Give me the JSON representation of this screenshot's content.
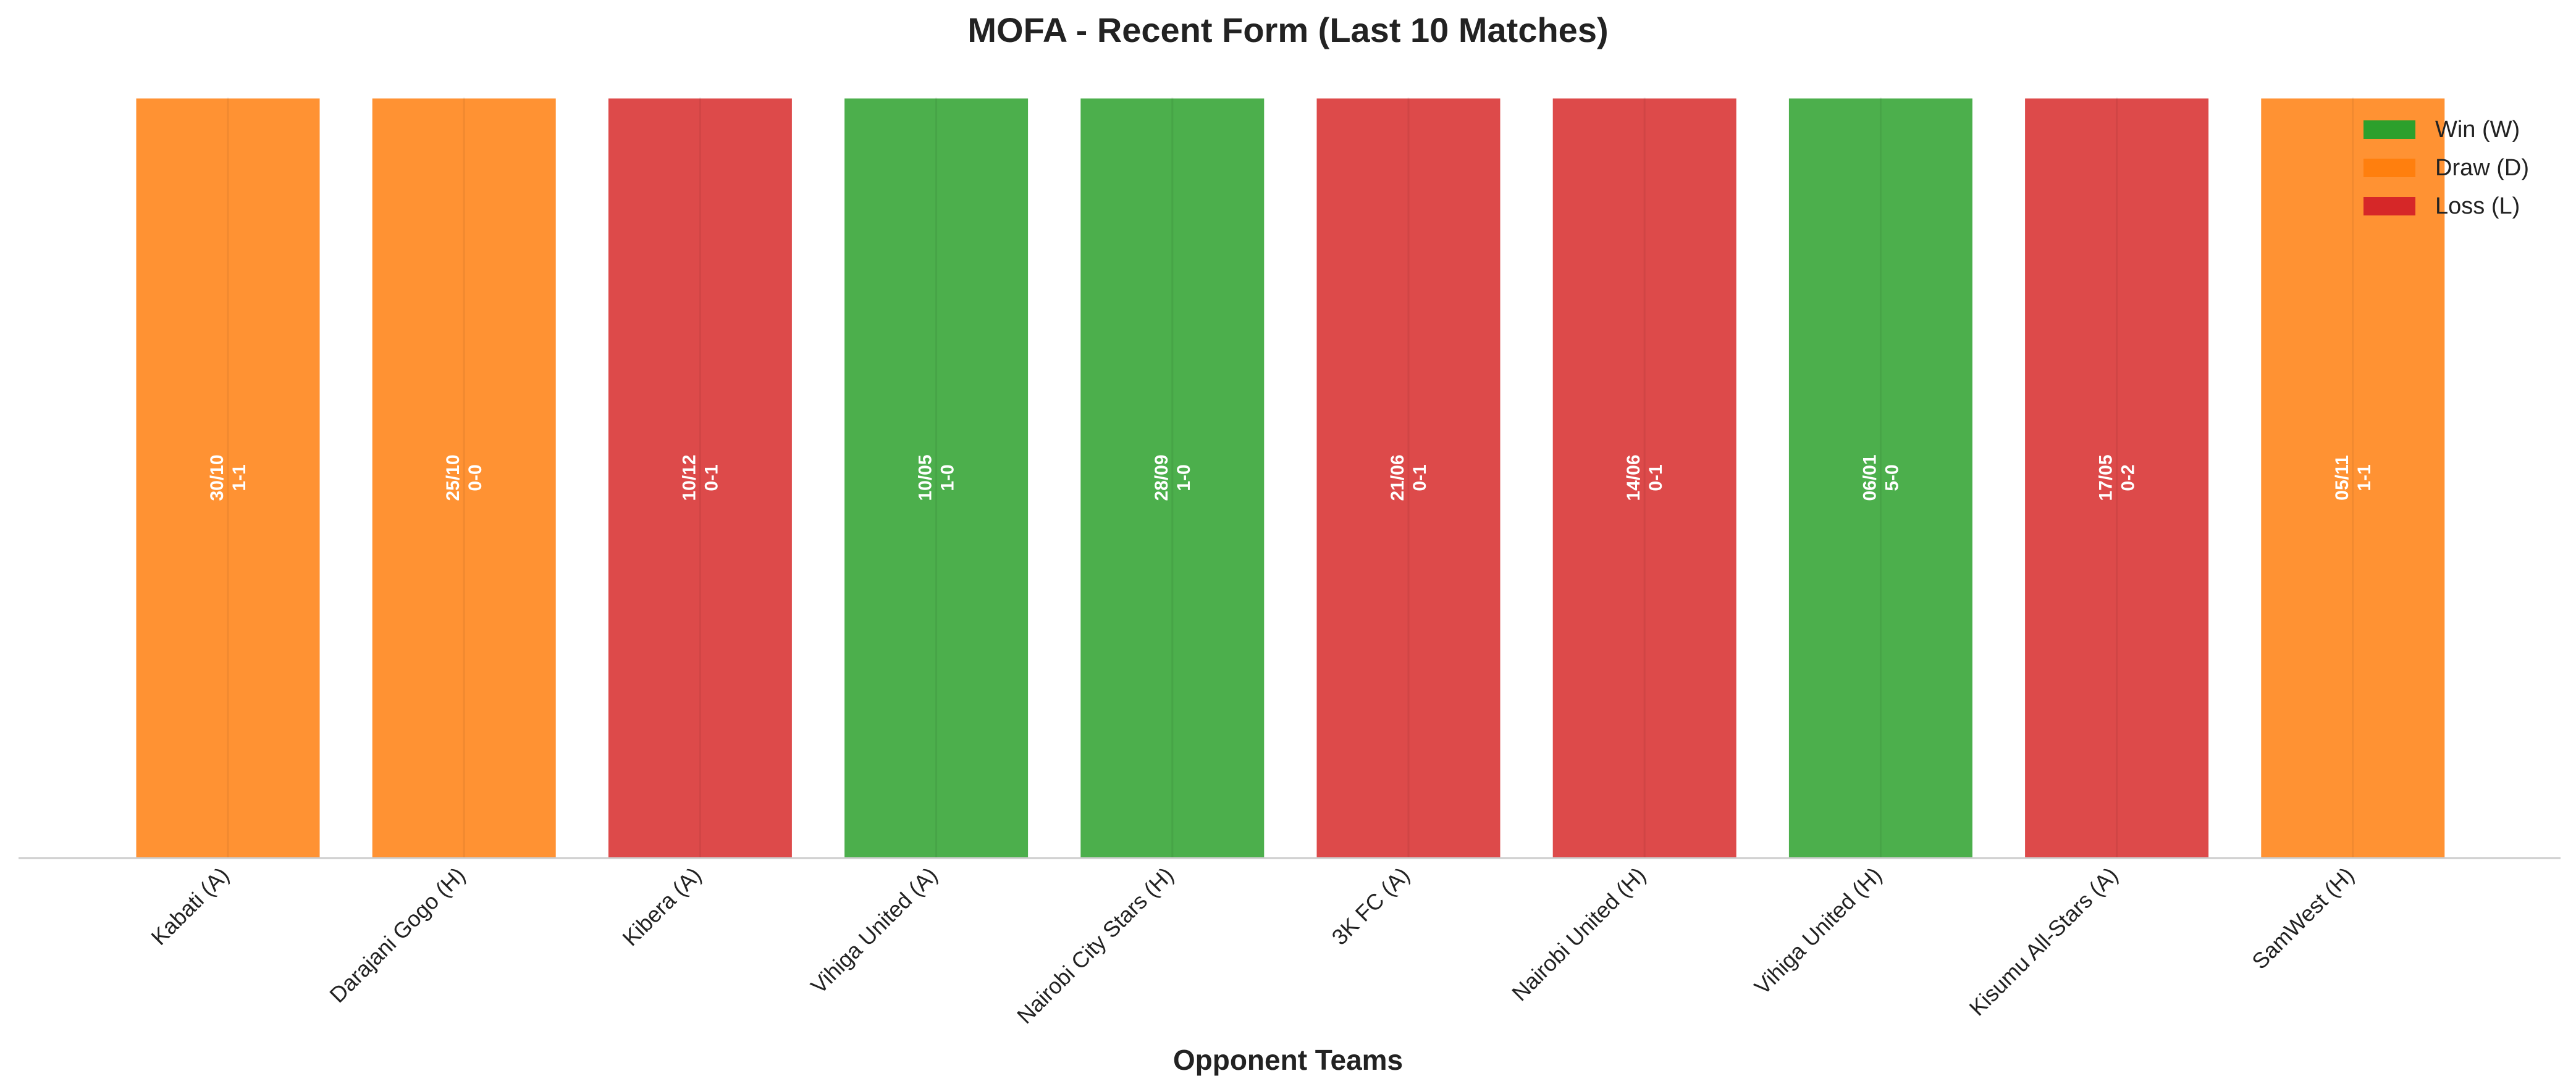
{
  "chart_data": {
    "type": "bar",
    "title": "MOFA - Recent Form (Last 10 Matches)",
    "xlabel": "Opponent Teams",
    "ylabel": "",
    "categories": [
      "Kabati (A)",
      "Darajani Gogo (H)",
      "Kibera (A)",
      "Vihiga United (A)",
      "Nairobi City Stars (H)",
      "3K FC (A)",
      "Nairobi United (H)",
      "Vihiga United (H)",
      "Kisumu All-Stars (A)",
      "SamWest (H)"
    ],
    "values": [
      1,
      1,
      1,
      1,
      1,
      1,
      1,
      1,
      1,
      1
    ],
    "results": [
      "D",
      "D",
      "L",
      "W",
      "W",
      "L",
      "L",
      "W",
      "L",
      "D"
    ],
    "dates": [
      "30/10",
      "25/10",
      "10/12",
      "10/05",
      "28/09",
      "21/06",
      "14/06",
      "06/01",
      "17/05",
      "05/11"
    ],
    "scores": [
      "1-1",
      "0-0",
      "0-1",
      "1-0",
      "1-0",
      "0-1",
      "0-1",
      "5-0",
      "0-2",
      "1-1"
    ],
    "ylim": [
      0,
      1
    ],
    "grid": false,
    "legend": {
      "placement": "top-right",
      "entries": [
        {
          "key": "W",
          "label": "Win (W)",
          "color": "#2ca02c"
        },
        {
          "key": "D",
          "label": "Draw (D)",
          "color": "#ff7f0e"
        },
        {
          "key": "L",
          "label": "Loss (L)",
          "color": "#d62728"
        }
      ]
    },
    "colors": {
      "W": "#4caf4c",
      "D": "#ff9233",
      "L": "#dd4a4a"
    }
  }
}
